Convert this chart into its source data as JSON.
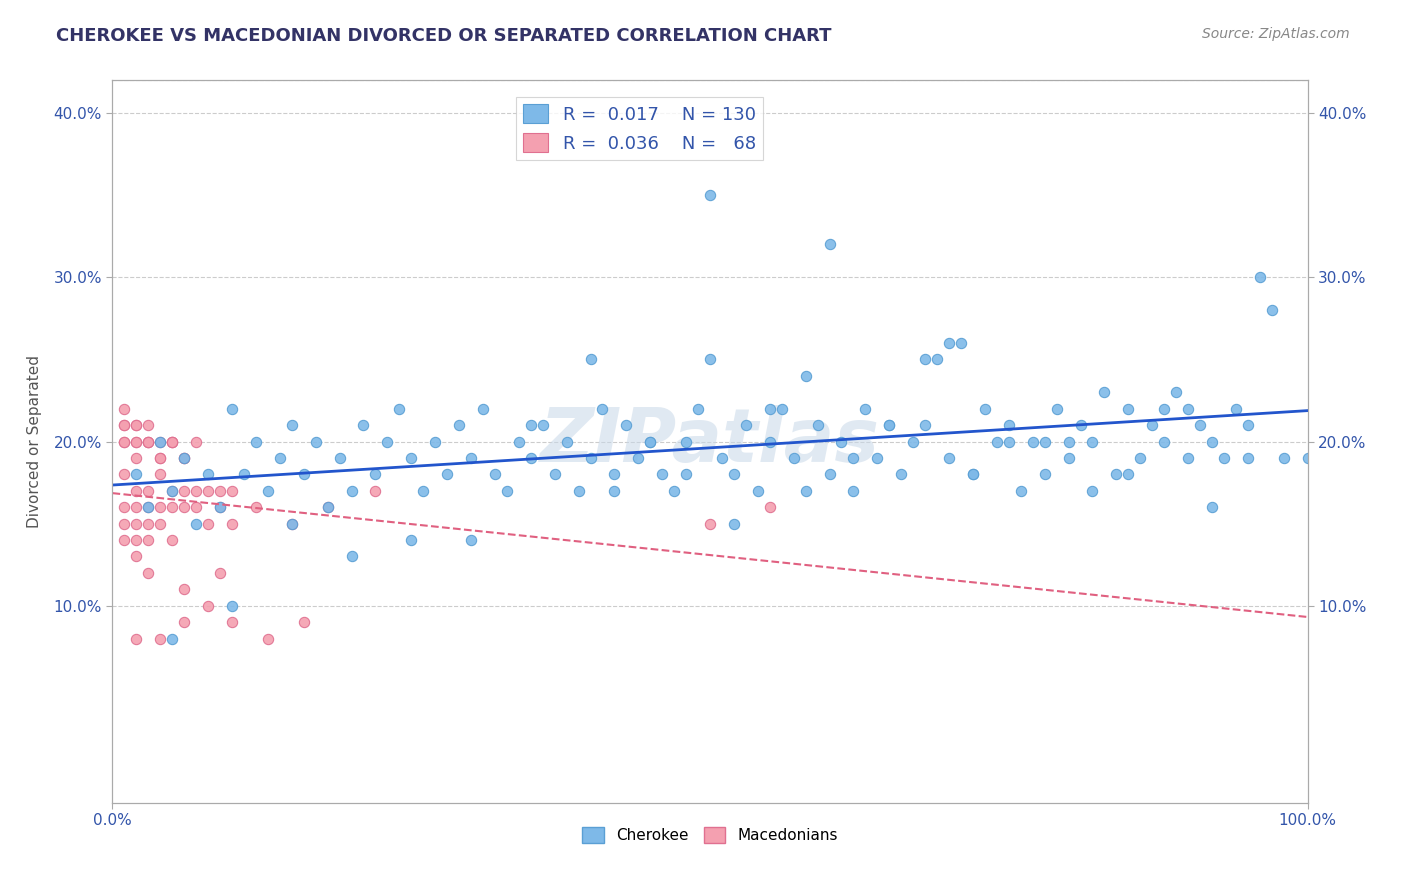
{
  "title": "CHEROKEE VS MACEDONIAN DIVORCED OR SEPARATED CORRELATION CHART",
  "source_text": "Source: ZipAtlas.com",
  "ylabel": "Divorced or Separated",
  "xlim": [
    0.0,
    100.0
  ],
  "ylim": [
    -2.0,
    42.0
  ],
  "x_tick_labels": [
    "0.0%",
    "100.0%"
  ],
  "y_tick_labels": [
    "10.0%",
    "20.0%",
    "30.0%",
    "40.0%"
  ],
  "y_tick_values": [
    10.0,
    20.0,
    30.0,
    40.0
  ],
  "background_color": "#ffffff",
  "grid_color": "#cccccc",
  "watermark_text": "ZIPatlas",
  "cherokee_color": "#7eb9e8",
  "macedonian_color": "#f4a0b0",
  "cherokee_edge": "#5a9fd4",
  "macedonian_edge": "#e07090",
  "trend_cherokee_color": "#2255cc",
  "trend_macedonian_color": "#e06080",
  "cherokee_scatter_x": [
    2,
    3,
    4,
    5,
    6,
    7,
    8,
    9,
    10,
    11,
    12,
    13,
    14,
    15,
    16,
    17,
    18,
    19,
    20,
    21,
    22,
    23,
    24,
    25,
    26,
    27,
    28,
    29,
    30,
    31,
    32,
    33,
    34,
    35,
    36,
    37,
    38,
    39,
    40,
    41,
    42,
    43,
    44,
    45,
    46,
    47,
    48,
    49,
    50,
    51,
    52,
    53,
    54,
    55,
    56,
    57,
    58,
    59,
    60,
    61,
    62,
    63,
    64,
    65,
    66,
    67,
    68,
    69,
    70,
    71,
    72,
    73,
    74,
    75,
    76,
    77,
    78,
    79,
    80,
    81,
    82,
    83,
    84,
    85,
    86,
    87,
    88,
    89,
    90,
    91,
    92,
    93,
    94,
    95,
    96,
    97,
    50,
    60,
    45,
    55,
    65,
    75,
    85,
    95,
    40,
    30,
    20,
    70,
    80,
    90,
    35,
    48,
    58,
    68,
    78,
    88,
    98,
    42,
    52,
    62,
    72,
    82,
    92,
    15,
    25,
    5,
    10,
    100
  ],
  "cherokee_scatter_y": [
    18,
    16,
    20,
    17,
    19,
    15,
    18,
    16,
    22,
    18,
    20,
    17,
    19,
    21,
    18,
    20,
    16,
    19,
    17,
    21,
    18,
    20,
    22,
    19,
    17,
    20,
    18,
    21,
    19,
    22,
    18,
    17,
    20,
    19,
    21,
    18,
    20,
    17,
    19,
    22,
    18,
    21,
    19,
    20,
    18,
    17,
    20,
    22,
    25,
    19,
    18,
    21,
    17,
    20,
    22,
    19,
    24,
    21,
    18,
    20,
    17,
    22,
    19,
    21,
    18,
    20,
    21,
    25,
    19,
    26,
    18,
    22,
    20,
    21,
    17,
    20,
    18,
    22,
    19,
    21,
    20,
    23,
    18,
    22,
    19,
    21,
    20,
    23,
    19,
    21,
    20,
    19,
    22,
    21,
    30,
    28,
    35,
    32,
    20,
    22,
    21,
    20,
    18,
    19,
    25,
    14,
    13,
    26,
    20,
    22,
    21,
    18,
    17,
    25,
    20,
    22,
    19,
    17,
    15,
    19,
    18,
    17,
    16,
    15,
    14,
    8,
    10,
    19
  ],
  "macedonian_scatter_x": [
    1,
    1,
    1,
    1,
    1,
    1,
    2,
    2,
    2,
    2,
    2,
    2,
    2,
    3,
    3,
    3,
    3,
    3,
    4,
    4,
    4,
    4,
    5,
    5,
    5,
    5,
    6,
    6,
    6,
    7,
    7,
    8,
    8,
    9,
    9,
    10,
    10,
    12,
    15,
    18,
    22,
    2,
    3,
    4,
    5,
    1,
    1,
    1,
    2,
    2,
    3,
    3,
    4,
    5,
    6,
    7,
    2,
    4,
    6,
    8,
    10,
    13,
    16,
    50,
    55,
    3,
    6,
    9
  ],
  "macedonian_scatter_y": [
    18,
    16,
    15,
    14,
    20,
    21,
    17,
    16,
    15,
    14,
    13,
    20,
    21,
    17,
    16,
    15,
    14,
    20,
    18,
    16,
    15,
    19,
    17,
    16,
    14,
    20,
    17,
    16,
    19,
    17,
    16,
    17,
    15,
    17,
    16,
    17,
    15,
    16,
    15,
    16,
    17,
    19,
    20,
    19,
    20,
    20,
    21,
    22,
    20,
    21,
    20,
    21,
    20,
    20,
    19,
    20,
    8,
    8,
    9,
    10,
    9,
    8,
    9,
    15,
    16,
    12,
    11,
    12
  ]
}
